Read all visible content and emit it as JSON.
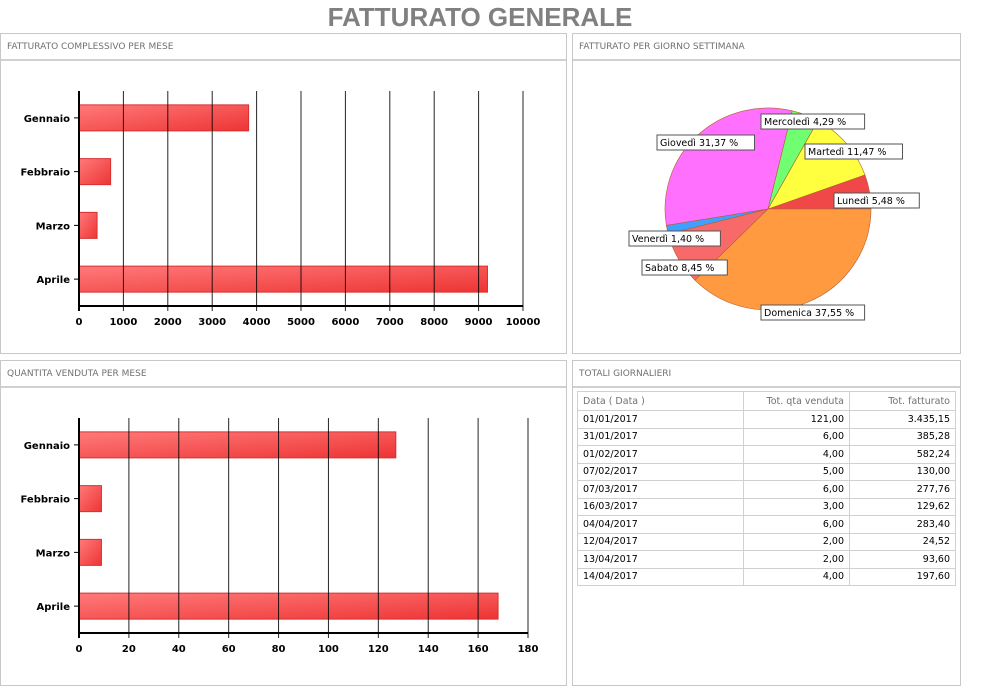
{
  "title": "FATTURATO GENERALE",
  "panels": {
    "revenue_month": "FATTURATO COMPLESSIVO PER MESE",
    "weekday": "FATTURATO PER GIORNO SETTIMANA",
    "qty_month": "QUANTITA VENDUTA PER MESE",
    "daily": "TOTALI GIORNALIERI"
  },
  "chart_data": [
    {
      "type": "bar",
      "orientation": "horizontal",
      "title": "FATTURATO COMPLESSIVO PER MESE",
      "categories": [
        "Gennaio",
        "Febbraio",
        "Marzo",
        "Aprile"
      ],
      "values": [
        3820,
        712,
        407,
        9200
      ],
      "xlim": [
        0,
        10000
      ],
      "ticks": [
        0,
        1000,
        2000,
        3000,
        4000,
        5000,
        6000,
        7000,
        8000,
        9000,
        10000
      ],
      "color": "#f04040"
    },
    {
      "type": "pie",
      "title": "FATTURATO PER GIORNO SETTIMANA",
      "slices": [
        {
          "label": "Lunedì 5,48 %",
          "value": 5.48,
          "color": "#f04848"
        },
        {
          "label": "Martedì 11,47 %",
          "value": 11.47,
          "color": "#ffff40"
        },
        {
          "label": "Mercoledì 4,29 %",
          "value": 4.29,
          "color": "#70ff70"
        },
        {
          "label": "Giovedì 31,37 %",
          "value": 31.37,
          "color": "#ff70ff"
        },
        {
          "label": "Venerdì 1,40 %",
          "value": 1.4,
          "color": "#40a0ff"
        },
        {
          "label": "Sabato 8,45 %",
          "value": 8.45,
          "color": "#f86a6a"
        },
        {
          "label": "Domenica 37,55 %",
          "value": 37.55,
          "color": "#ff9a40"
        }
      ]
    },
    {
      "type": "bar",
      "orientation": "horizontal",
      "title": "QUANTITA VENDUTA PER MESE",
      "categories": [
        "Gennaio",
        "Febbraio",
        "Marzo",
        "Aprile"
      ],
      "values": [
        127,
        9,
        9,
        168
      ],
      "xlim": [
        0,
        180
      ],
      "ticks": [
        0,
        20,
        40,
        60,
        80,
        100,
        120,
        140,
        160,
        180
      ],
      "color": "#f04040"
    }
  ],
  "table": {
    "headers": [
      "Data ( Data )",
      "Tot. qta venduta",
      "Tot. fatturato"
    ],
    "rows": [
      [
        "01/01/2017",
        "121,00",
        "3.435,15"
      ],
      [
        "31/01/2017",
        "6,00",
        "385,28"
      ],
      [
        "01/02/2017",
        "4,00",
        "582,24"
      ],
      [
        "07/02/2017",
        "5,00",
        "130,00"
      ],
      [
        "07/03/2017",
        "6,00",
        "277,76"
      ],
      [
        "16/03/2017",
        "3,00",
        "129,62"
      ],
      [
        "04/04/2017",
        "6,00",
        "283,40"
      ],
      [
        "12/04/2017",
        "2,00",
        "24,52"
      ],
      [
        "13/04/2017",
        "2,00",
        "93,60"
      ],
      [
        "14/04/2017",
        "4,00",
        "197,60"
      ]
    ]
  }
}
